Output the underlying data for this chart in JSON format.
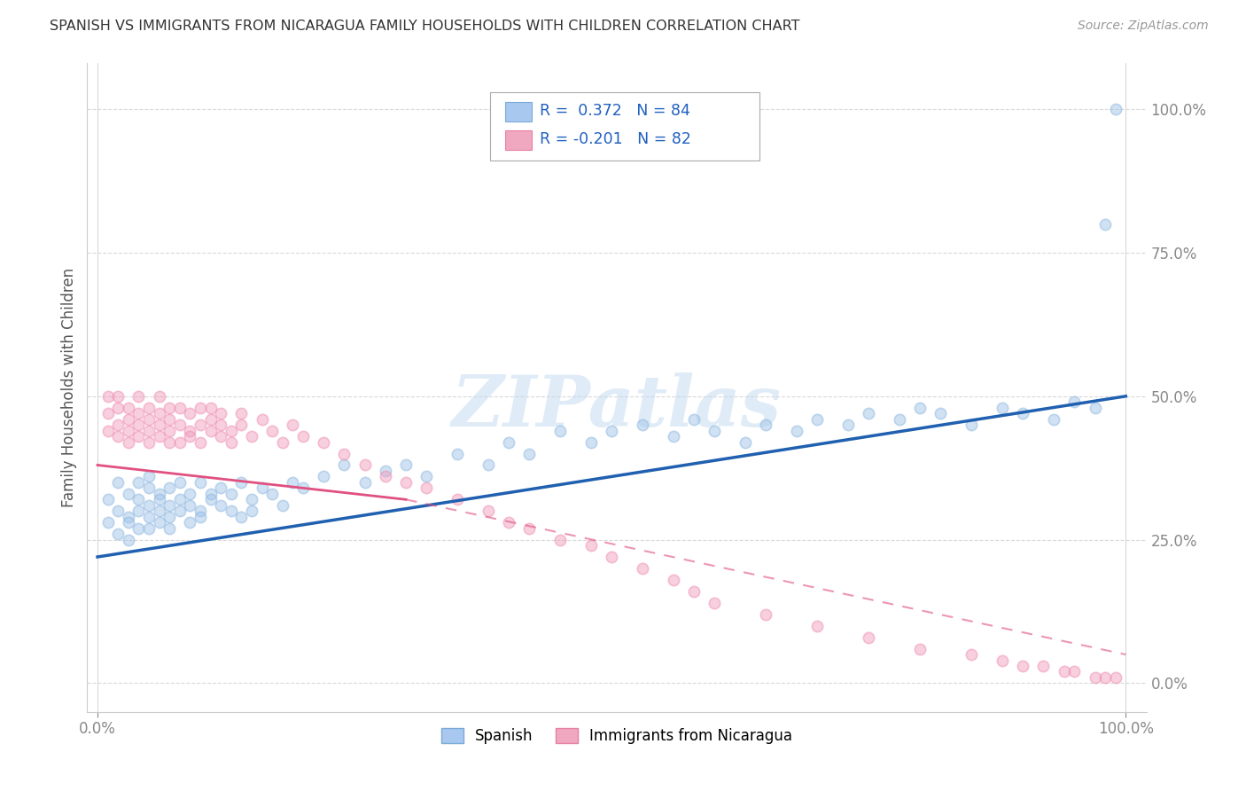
{
  "title": "SPANISH VS IMMIGRANTS FROM NICARAGUA FAMILY HOUSEHOLDS WITH CHILDREN CORRELATION CHART",
  "source": "Source: ZipAtlas.com",
  "ylabel": "Family Households with Children",
  "ytick_values": [
    0,
    25,
    50,
    75,
    100
  ],
  "ytick_labels": [
    "0.0%",
    "25.0%",
    "50.0%",
    "75.0%",
    "100.0%"
  ],
  "xtick_labels": [
    "0.0%",
    "100.0%"
  ],
  "xlim": [
    0,
    100
  ],
  "ylim": [
    0,
    100
  ],
  "R_spanish": 0.372,
  "N_spanish": 84,
  "R_nicaragua": -0.201,
  "N_nicaragua": 82,
  "blue_scatter_color": "#90b8e0",
  "pink_scatter_color": "#f090b0",
  "blue_line_color": "#2060b0",
  "pink_line_color": "#e05080",
  "watermark": "ZIPatlas",
  "watermark_color": "#c0d8f0",
  "background_color": "#ffffff",
  "grid_color": "#d0d0d0",
  "title_color": "#333333",
  "source_color": "#999999",
  "axis_label_color": "#555555",
  "tick_color": "#4a86c8",
  "legend_box_color": "#4a86c8",
  "legend_r_color": "#2060c0",
  "blue_legend_face": "#a8c8f0",
  "pink_legend_face": "#f0a8c0",
  "blue_scatter_face": "#a0c4e8",
  "pink_scatter_face": "#f0a0c0",
  "scatter_alpha": 0.5,
  "scatter_size": 80,
  "spanish_x": [
    1,
    1,
    2,
    2,
    2,
    3,
    3,
    3,
    3,
    4,
    4,
    4,
    4,
    5,
    5,
    5,
    5,
    5,
    6,
    6,
    6,
    6,
    7,
    7,
    7,
    7,
    8,
    8,
    8,
    9,
    9,
    9,
    10,
    10,
    10,
    11,
    11,
    12,
    12,
    13,
    13,
    14,
    14,
    15,
    15,
    16,
    17,
    18,
    19,
    20,
    22,
    24,
    26,
    28,
    30,
    32,
    35,
    38,
    40,
    42,
    45,
    48,
    50,
    53,
    56,
    58,
    60,
    63,
    65,
    68,
    70,
    73,
    75,
    78,
    80,
    82,
    85,
    88,
    90,
    93,
    95,
    97,
    98,
    99
  ],
  "spanish_y": [
    32,
    28,
    35,
    30,
    26,
    33,
    29,
    28,
    25,
    32,
    30,
    27,
    35,
    34,
    31,
    29,
    27,
    36,
    33,
    30,
    28,
    32,
    31,
    34,
    29,
    27,
    32,
    30,
    35,
    33,
    28,
    31,
    30,
    35,
    29,
    33,
    32,
    34,
    31,
    30,
    33,
    29,
    35,
    32,
    30,
    34,
    33,
    31,
    35,
    34,
    36,
    38,
    35,
    37,
    38,
    36,
    40,
    38,
    42,
    40,
    44,
    42,
    44,
    45,
    43,
    46,
    44,
    42,
    45,
    44,
    46,
    45,
    47,
    46,
    48,
    47,
    45,
    48,
    47,
    46,
    49,
    48,
    80,
    100
  ],
  "nicaragua_x": [
    1,
    1,
    1,
    2,
    2,
    2,
    2,
    3,
    3,
    3,
    3,
    4,
    4,
    4,
    4,
    5,
    5,
    5,
    5,
    6,
    6,
    6,
    6,
    7,
    7,
    7,
    7,
    8,
    8,
    8,
    9,
    9,
    9,
    10,
    10,
    10,
    11,
    11,
    11,
    12,
    12,
    12,
    13,
    13,
    14,
    14,
    15,
    16,
    17,
    18,
    19,
    20,
    22,
    24,
    26,
    28,
    30,
    32,
    35,
    38,
    40,
    42,
    45,
    48,
    50,
    53,
    56,
    58,
    60,
    65,
    70,
    75,
    80,
    85,
    88,
    90,
    92,
    94,
    95,
    97,
    98,
    99
  ],
  "nicaragua_y": [
    47,
    44,
    50,
    48,
    43,
    45,
    50,
    46,
    42,
    48,
    44,
    47,
    43,
    50,
    45,
    46,
    42,
    48,
    44,
    47,
    43,
    45,
    50,
    44,
    48,
    42,
    46,
    45,
    48,
    42,
    44,
    47,
    43,
    45,
    48,
    42,
    46,
    44,
    48,
    43,
    45,
    47,
    44,
    42,
    45,
    47,
    43,
    46,
    44,
    42,
    45,
    43,
    42,
    40,
    38,
    36,
    35,
    34,
    32,
    30,
    28,
    27,
    25,
    24,
    22,
    20,
    18,
    16,
    14,
    12,
    10,
    8,
    6,
    5,
    4,
    3,
    3,
    2,
    2,
    1,
    1,
    1
  ],
  "blue_line_x0": 0,
  "blue_line_y0": 22,
  "blue_line_x1": 100,
  "blue_line_y1": 50,
  "pink_line_x0": 0,
  "pink_line_y0": 38,
  "pink_line_x1": 100,
  "pink_line_y1": 5
}
